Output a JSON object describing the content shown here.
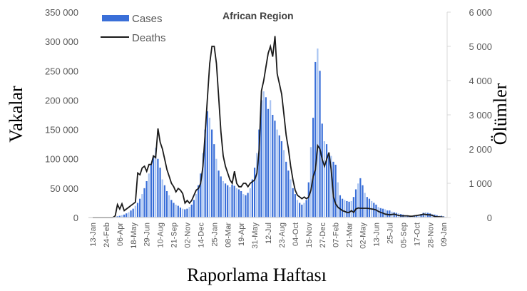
{
  "chart_data": {
    "type": "bar+line",
    "title": "African Region",
    "xlabel": "Raporlama Haftası",
    "ylabel": "Vakalar",
    "y2label": "Ölümler",
    "ylim": [
      0,
      350000
    ],
    "y2lim": [
      0,
      6000
    ],
    "yticks": [
      "0",
      "50 000",
      "100 000",
      "150 000",
      "200 000",
      "250 000",
      "300 000",
      "350 000"
    ],
    "y2ticks": [
      "0",
      "1 000",
      "2 000",
      "3 000",
      "4 000",
      "5 000",
      "6 000"
    ],
    "xtick_labels": [
      "13-Jan",
      "24-Feb",
      "06-Apr",
      "18-May",
      "29-Jun",
      "10-Aug",
      "21-Sep",
      "02-Nov",
      "14-Dec",
      "25-Jan",
      "08-Mar",
      "19-Apr",
      "31-May",
      "12-Jul",
      "23-Aug",
      "04-Oct",
      "15-Nov",
      "27-Dec",
      "07-Feb",
      "21-Mar",
      "02-May",
      "13-Jun",
      "25-Jul",
      "05-Sep",
      "17-Oct",
      "28-Nov",
      "09-Jan"
    ],
    "xtick_every_weeks": 6,
    "legend": {
      "position": "top-left",
      "entries": [
        "Cases",
        "Deaths"
      ]
    },
    "grid": false,
    "colors": {
      "cases": "#3a6fd8",
      "cases_light": "#a9c4f2",
      "deaths": "#1a1a1a"
    },
    "series": [
      {
        "name": "Cases",
        "type": "bar",
        "axis": "left",
        "values": [
          0,
          0,
          0,
          0,
          0,
          0,
          0,
          0,
          0,
          0,
          1000,
          2000,
          3000,
          4000,
          5000,
          7000,
          9000,
          12000,
          15000,
          20000,
          25000,
          32000,
          40000,
          50000,
          62000,
          75000,
          90000,
          105000,
          119000,
          100000,
          85000,
          65000,
          55000,
          45000,
          38000,
          30000,
          25000,
          22000,
          20000,
          17000,
          15000,
          14000,
          15000,
          18000,
          22000,
          30000,
          40000,
          55000,
          75000,
          110000,
          150000,
          181000,
          170000,
          150000,
          125000,
          100000,
          80000,
          70000,
          62000,
          58000,
          55000,
          52000,
          56000,
          54000,
          50000,
          48000,
          45000,
          40000,
          38000,
          42000,
          50000,
          65000,
          85000,
          110000,
          150000,
          200000,
          215000,
          205000,
          185000,
          200000,
          175000,
          165000,
          150000,
          140000,
          130000,
          115000,
          95000,
          80000,
          65000,
          50000,
          40000,
          30000,
          25000,
          22000,
          25000,
          30000,
          60000,
          120000,
          170000,
          265000,
          288000,
          250000,
          160000,
          130000,
          125000,
          110000,
          105000,
          95000,
          90000,
          60000,
          38000,
          32000,
          30000,
          28000,
          27000,
          28000,
          35000,
          48000,
          58000,
          67000,
          55000,
          42000,
          35000,
          32000,
          28000,
          25000,
          22000,
          18000,
          16000,
          15000,
          14000,
          12000,
          12000,
          10000,
          9000,
          8000,
          7000,
          6000,
          5000,
          4000,
          3000,
          3000,
          3000,
          4000,
          4000,
          5000,
          6000,
          8000,
          9000,
          8000,
          7000,
          6000,
          5000,
          4000,
          3000,
          3000,
          2000
        ]
      },
      {
        "name": "Deaths",
        "type": "line",
        "axis": "right",
        "values": [
          0,
          0,
          0,
          0,
          0,
          0,
          0,
          0,
          0,
          0,
          50,
          380,
          250,
          400,
          200,
          250,
          300,
          350,
          400,
          450,
          1300,
          1250,
          1450,
          1500,
          1350,
          1550,
          1550,
          1800,
          1750,
          2600,
          2200,
          2000,
          1700,
          1400,
          1200,
          1000,
          900,
          750,
          850,
          800,
          700,
          420,
          500,
          420,
          500,
          650,
          800,
          850,
          1000,
          1500,
          2500,
          3500,
          4500,
          5000,
          5000,
          4500,
          3500,
          2500,
          1800,
          1500,
          1300,
          1100,
          1000,
          1350,
          1000,
          900,
          900,
          1000,
          1000,
          900,
          1000,
          1050,
          1100,
          1300,
          2000,
          3700,
          4000,
          4400,
          4800,
          5000,
          4700,
          5300,
          4200,
          3900,
          3600,
          3000,
          2400,
          2000,
          1500,
          1100,
          800,
          650,
          600,
          550,
          600,
          550,
          600,
          800,
          1200,
          1400,
          2100,
          2000,
          1700,
          1500,
          1700,
          1900,
          1400,
          600,
          400,
          300,
          250,
          200,
          180,
          150,
          150,
          200,
          150,
          250,
          280,
          270,
          270,
          270,
          270,
          260,
          250,
          240,
          220,
          180,
          150,
          130,
          100,
          90,
          80,
          90,
          100,
          80,
          60,
          50,
          50,
          50,
          50,
          40,
          40,
          50,
          60,
          70,
          80,
          100,
          90,
          80,
          80,
          60,
          30,
          20,
          20,
          15,
          10
        ]
      }
    ]
  }
}
